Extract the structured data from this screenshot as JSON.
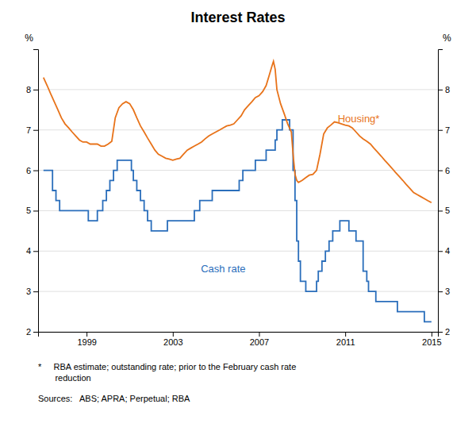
{
  "chart_data": {
    "type": "line",
    "title": "Interest Rates",
    "y_label": "%",
    "y2_label": "%",
    "xlim": [
      1996.75,
      2015.3
    ],
    "xticks": [
      1999,
      2003,
      2007,
      2011,
      2015
    ],
    "ylim": [
      2,
      9
    ],
    "yticks": [
      2,
      3,
      4,
      5,
      6,
      7,
      8
    ],
    "y2lim": [
      2,
      9
    ],
    "y2ticks": [
      2,
      3,
      4,
      5,
      6,
      7,
      8
    ],
    "grid": true,
    "series": [
      {
        "color": "#2a6ebb",
        "line_style": "step",
        "x": [
          1997.0,
          1997.42,
          1997.58,
          1997.75,
          1998.0,
          1998.75,
          1999.0,
          1999.08,
          1999.25,
          1999.5,
          1999.75,
          1999.92,
          2000.08,
          2000.25,
          2000.42,
          2000.58,
          2000.75,
          2001.0,
          2001.08,
          2001.17,
          2001.33,
          2001.5,
          2001.67,
          2001.83,
          2002.0,
          2002.5,
          2002.75,
          2003.0,
          2003.5,
          2004.0,
          2004.25,
          2004.5,
          2004.83,
          2005.0,
          2005.5,
          2006.0,
          2006.08,
          2006.25,
          2006.5,
          2006.83,
          2007.0,
          2007.17,
          2007.33,
          2007.58,
          2007.75,
          2007.83,
          2008.0,
          2008.08,
          2008.17,
          2008.42,
          2008.58,
          2008.67,
          2008.75,
          2008.83,
          2008.92,
          2009.0,
          2009.08,
          2009.17,
          2009.33,
          2009.42,
          2009.67,
          2009.75,
          2009.92,
          2010.08,
          2010.25,
          2010.42,
          2010.75,
          2010.92,
          2011.0,
          2011.17,
          2011.5,
          2011.83,
          2012.0,
          2012.08,
          2012.25,
          2012.42,
          2012.5,
          2012.67,
          2012.75,
          2013.0,
          2013.25,
          2013.42,
          2013.58,
          2013.75,
          2014.0,
          2014.5,
          2014.67,
          2014.83,
          2015.0
        ],
        "values": [
          6.0,
          5.5,
          5.25,
          5.0,
          5.0,
          5.0,
          5.0,
          4.75,
          4.75,
          5.0,
          5.25,
          5.5,
          5.75,
          6.0,
          6.25,
          6.25,
          6.25,
          6.25,
          6.0,
          5.75,
          5.5,
          5.25,
          5.0,
          4.75,
          4.5,
          4.5,
          4.75,
          4.75,
          4.75,
          5.0,
          5.25,
          5.25,
          5.5,
          5.5,
          5.5,
          5.5,
          5.75,
          6.0,
          6.0,
          6.25,
          6.25,
          6.25,
          6.5,
          6.5,
          6.75,
          7.0,
          7.0,
          7.25,
          7.25,
          7.0,
          6.0,
          5.25,
          4.25,
          3.75,
          3.25,
          3.25,
          3.25,
          3.0,
          3.0,
          3.0,
          3.25,
          3.5,
          3.75,
          4.0,
          4.25,
          4.5,
          4.75,
          4.75,
          4.75,
          4.5,
          4.25,
          3.5,
          3.25,
          3.0,
          3.0,
          2.75,
          2.75,
          2.75,
          2.75,
          2.75,
          2.75,
          2.5,
          2.5,
          2.5,
          2.5,
          2.5,
          2.25,
          2.25,
          2.25
        ]
      },
      {
        "color": "#e8731a",
        "line_style": "solid",
        "x": [
          1997.0,
          1997.17,
          1997.33,
          1997.5,
          1997.67,
          1997.83,
          1998.0,
          1998.17,
          1998.33,
          1998.5,
          1998.67,
          1998.83,
          1999.0,
          1999.17,
          1999.33,
          1999.5,
          1999.67,
          1999.83,
          2000.0,
          2000.17,
          2000.33,
          2000.5,
          2000.67,
          2000.83,
          2001.0,
          2001.17,
          2001.33,
          2001.5,
          2001.67,
          2001.83,
          2002.0,
          2002.17,
          2002.33,
          2002.5,
          2002.67,
          2002.83,
          2003.0,
          2003.17,
          2003.33,
          2003.5,
          2003.67,
          2003.83,
          2004.0,
          2004.17,
          2004.33,
          2004.5,
          2004.67,
          2004.83,
          2005.0,
          2005.17,
          2005.33,
          2005.5,
          2005.67,
          2005.83,
          2006.0,
          2006.17,
          2006.33,
          2006.5,
          2006.67,
          2006.83,
          2007.0,
          2007.17,
          2007.33,
          2007.5,
          2007.58,
          2007.67,
          2007.75,
          2007.83,
          2008.0,
          2008.17,
          2008.33,
          2008.5,
          2008.58,
          2008.67,
          2008.75,
          2008.83,
          2009.0,
          2009.17,
          2009.33,
          2009.5,
          2009.67,
          2009.83,
          2010.0,
          2010.17,
          2010.33,
          2010.5,
          2010.67,
          2010.83,
          2011.0,
          2011.17,
          2011.33,
          2011.5,
          2011.67,
          2011.83,
          2012.0,
          2012.17,
          2012.33,
          2012.5,
          2012.67,
          2012.83,
          2013.0,
          2013.17,
          2013.33,
          2013.5,
          2013.67,
          2013.83,
          2014.0,
          2014.17,
          2014.33,
          2014.5,
          2014.67,
          2014.83,
          2015.0
        ],
        "values": [
          8.3,
          8.1,
          7.9,
          7.7,
          7.5,
          7.3,
          7.15,
          7.05,
          6.95,
          6.85,
          6.75,
          6.7,
          6.7,
          6.65,
          6.65,
          6.65,
          6.6,
          6.6,
          6.65,
          6.72,
          7.3,
          7.55,
          7.65,
          7.7,
          7.65,
          7.5,
          7.3,
          7.1,
          6.95,
          6.8,
          6.65,
          6.5,
          6.4,
          6.35,
          6.3,
          6.28,
          6.25,
          6.28,
          6.3,
          6.4,
          6.5,
          6.55,
          6.6,
          6.65,
          6.7,
          6.78,
          6.85,
          6.9,
          6.95,
          7.0,
          7.05,
          7.1,
          7.12,
          7.15,
          7.25,
          7.35,
          7.5,
          7.6,
          7.7,
          7.8,
          7.85,
          7.95,
          8.1,
          8.4,
          8.55,
          8.7,
          8.5,
          8.0,
          7.65,
          7.4,
          7.15,
          6.95,
          6.4,
          5.9,
          5.75,
          5.7,
          5.75,
          5.82,
          5.88,
          5.9,
          6.0,
          6.4,
          6.9,
          7.05,
          7.12,
          7.2,
          7.18,
          7.15,
          7.12,
          7.1,
          7.05,
          6.95,
          6.85,
          6.78,
          6.72,
          6.65,
          6.55,
          6.45,
          6.35,
          6.25,
          6.15,
          6.05,
          5.95,
          5.85,
          5.75,
          5.65,
          5.55,
          5.45,
          5.4,
          5.35,
          5.3,
          5.25,
          5.2
        ]
      }
    ],
    "annotations": [
      {
        "text": "Cash rate",
        "x": 2004.3,
        "y": 3.55,
        "color": "#2a6ebb"
      },
      {
        "text": "Housing*",
        "x": 2010.65,
        "y": 7.25,
        "color": "#e8731a"
      }
    ],
    "footnotes": [
      "*     RBA estimate; outstanding rate; prior to the February cash rate\n       reduction",
      "Sources:   ABS; APRA; Perpetual; RBA"
    ]
  }
}
